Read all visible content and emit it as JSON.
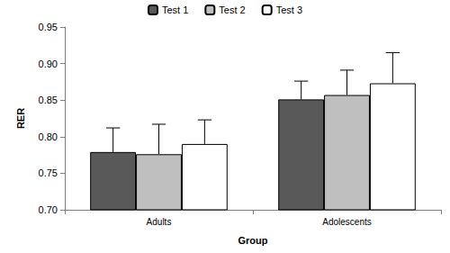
{
  "chart_data": {
    "type": "bar",
    "x_label": "Group",
    "y_label": "RER",
    "categories": [
      "Adults",
      "Adolescents"
    ],
    "series": [
      {
        "name": "Test 1",
        "color": "#595959",
        "values": [
          0.779,
          0.851
        ],
        "errors": [
          0.033,
          0.025
        ]
      },
      {
        "name": "Test 2",
        "color": "#bfbfbf",
        "values": [
          0.776,
          0.857
        ],
        "errors": [
          0.041,
          0.034
        ]
      },
      {
        "name": "Test 3",
        "color": "#ffffff",
        "values": [
          0.79,
          0.873
        ],
        "errors": [
          0.033,
          0.042
        ]
      }
    ],
    "ylim": [
      0.7,
      0.95
    ],
    "yticks": [
      {
        "value": 0.7,
        "label": "0.70"
      },
      0.75,
      {
        "value": 0.8,
        "label": "0.80"
      },
      0.85,
      {
        "value": 0.9,
        "label": "0.90"
      },
      0.95
    ],
    "grid": false,
    "legend": "top"
  }
}
